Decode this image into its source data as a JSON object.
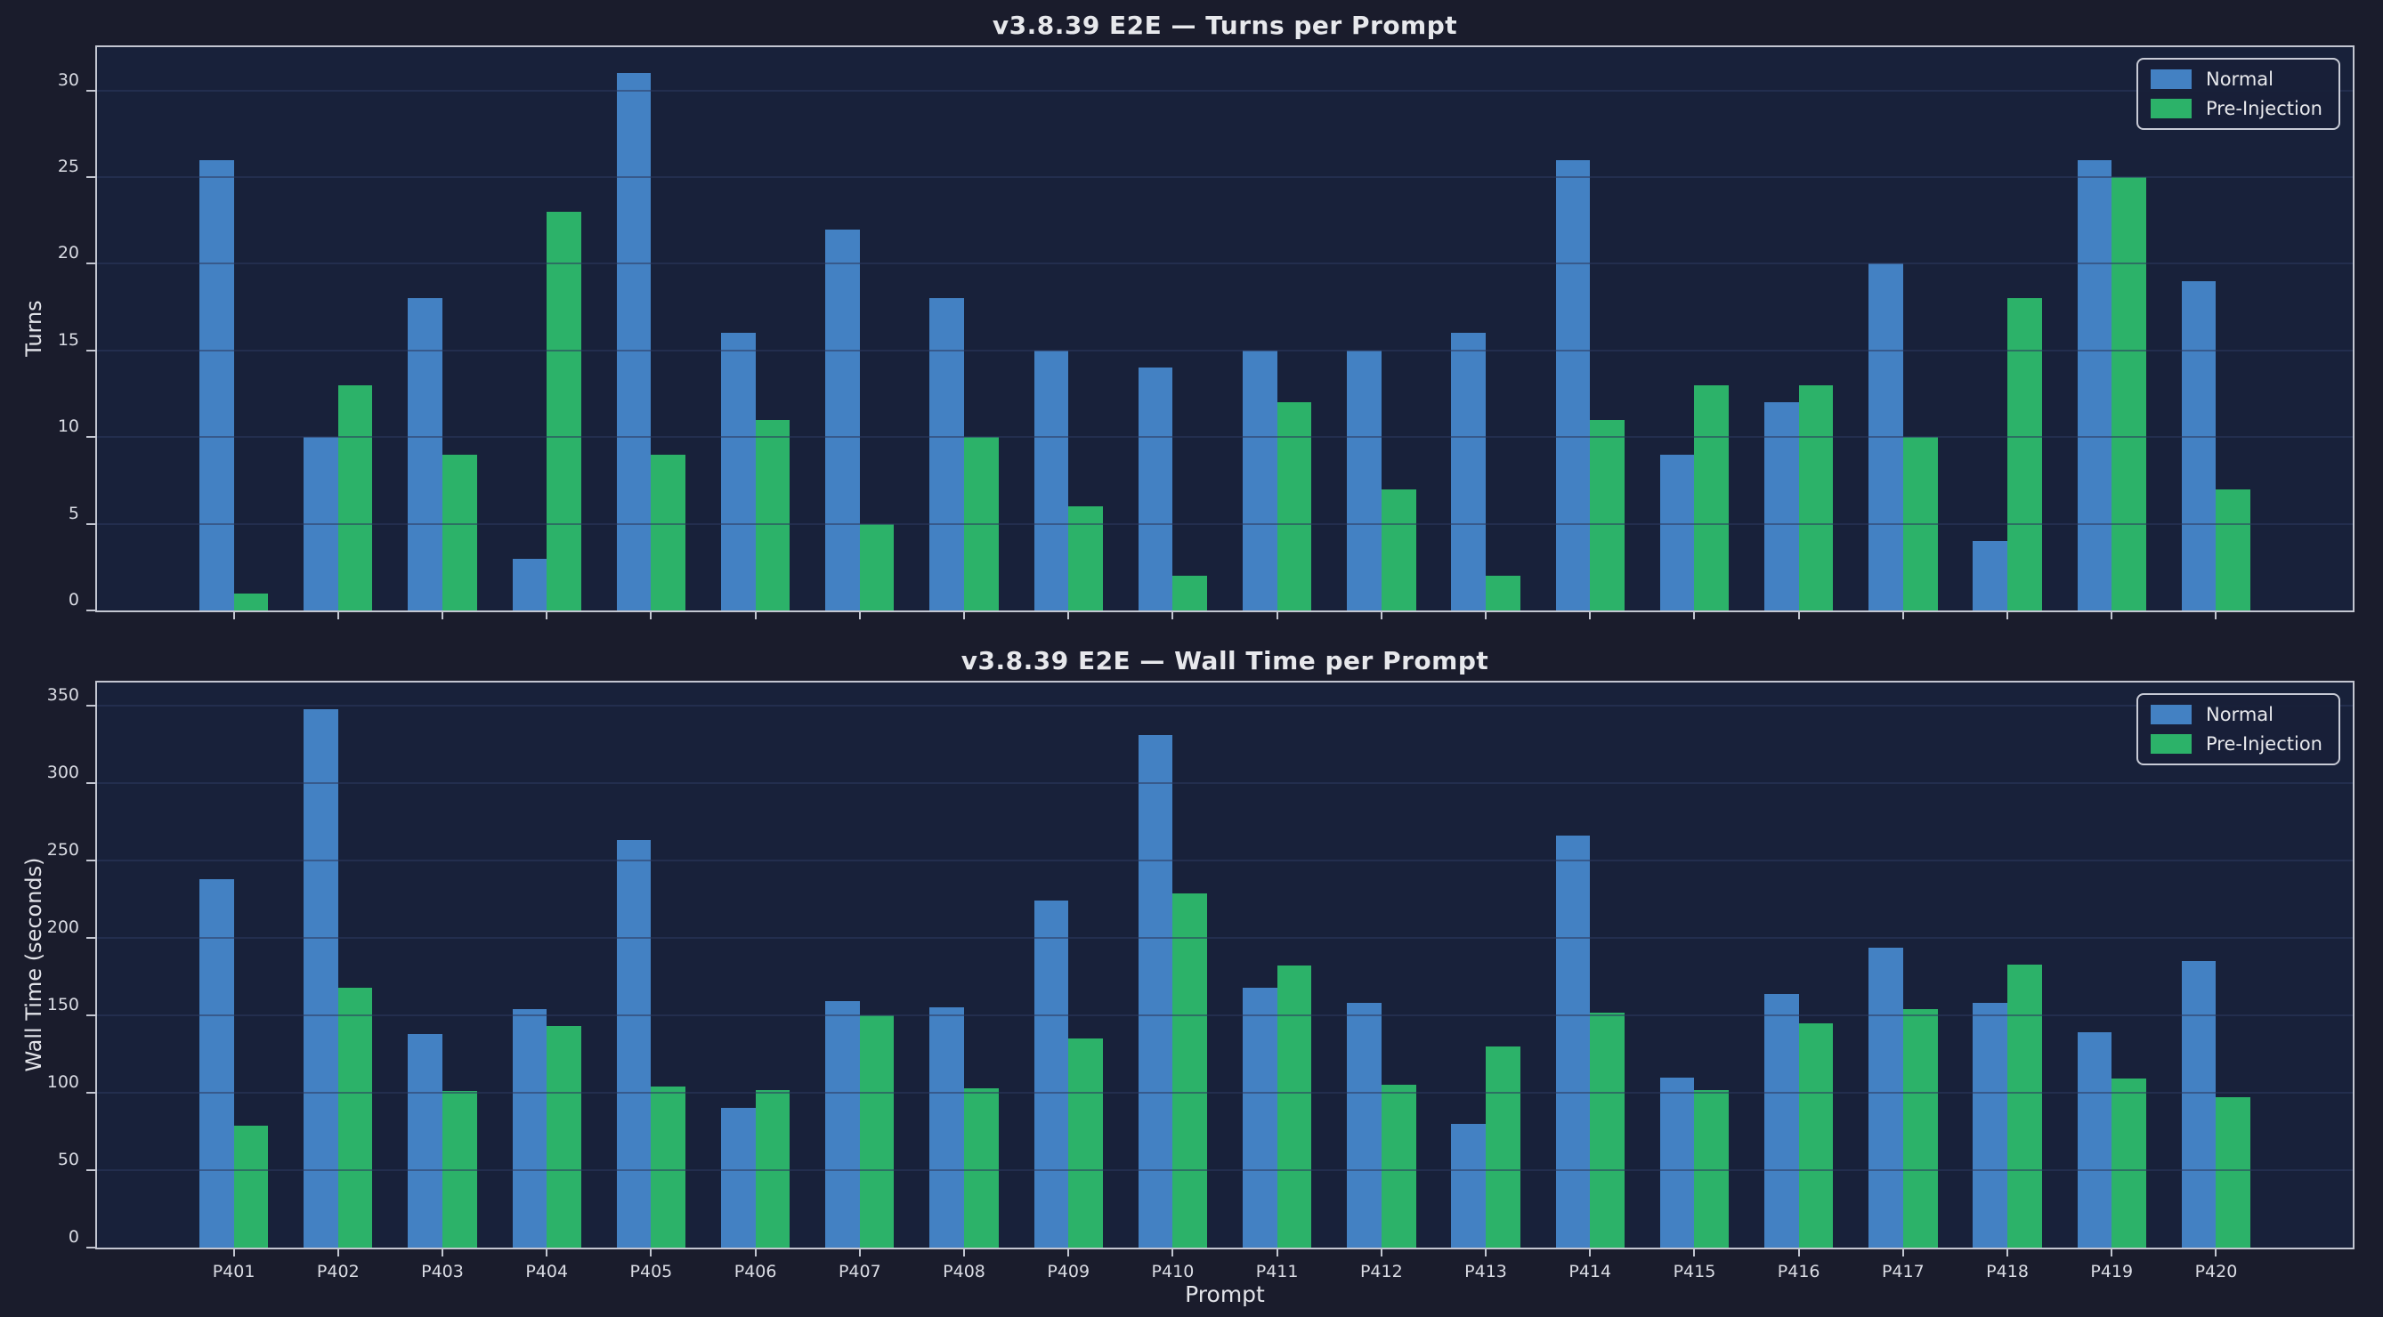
{
  "colors": {
    "figure_background": "#1a1c2c",
    "axes_background": "#18213a",
    "normal_blue": "#4381c3",
    "preinjection_green": "#2cb269",
    "title_text": "#e7e8ec",
    "tick_text": "#dadce4",
    "spine": "#c3c6d1",
    "grid": "rgba(46,58,94,0.55)"
  },
  "legend": {
    "items": [
      {
        "label": "Normal",
        "color": "#4381c3"
      },
      {
        "label": "Pre-Injection",
        "color": "#2cb269"
      }
    ],
    "position": "upper right"
  },
  "chart_data": [
    {
      "type": "bar",
      "title": "v3.8.39 E2E — Turns per Prompt",
      "ylabel": "Turns",
      "xlabel": "",
      "categories": [
        "P401",
        "P402",
        "P403",
        "P404",
        "P405",
        "P406",
        "P407",
        "P408",
        "P409",
        "P410",
        "P411",
        "P412",
        "P413",
        "P414",
        "P415",
        "P416",
        "P417",
        "P418",
        "P419",
        "P420"
      ],
      "series": [
        {
          "name": "Normal",
          "color": "#4381c3",
          "values": [
            26,
            10,
            18,
            3,
            31,
            16,
            22,
            18,
            15,
            14,
            15,
            15,
            16,
            26,
            9,
            12,
            20,
            4,
            26,
            19
          ]
        },
        {
          "name": "Pre-Injection",
          "color": "#2cb269",
          "values": [
            1,
            13,
            9,
            23,
            9,
            11,
            5,
            10,
            6,
            2,
            12,
            7,
            2,
            11,
            13,
            13,
            10,
            18,
            25,
            7
          ]
        }
      ],
      "ylim": [
        0,
        32.5
      ],
      "yticks": [
        0,
        5,
        10,
        15,
        20,
        25,
        30
      ],
      "grid": true,
      "legend_position": "upper right",
      "show_x_tick_labels": false
    },
    {
      "type": "bar",
      "title": "v3.8.39 E2E — Wall Time per Prompt",
      "ylabel": "Wall Time (seconds)",
      "xlabel": "Prompt",
      "categories": [
        "P401",
        "P402",
        "P403",
        "P404",
        "P405",
        "P406",
        "P407",
        "P408",
        "P409",
        "P410",
        "P411",
        "P412",
        "P413",
        "P414",
        "P415",
        "P416",
        "P417",
        "P418",
        "P419",
        "P420"
      ],
      "series": [
        {
          "name": "Normal",
          "color": "#4381c3",
          "values": [
            238,
            348,
            138,
            154,
            263,
            90,
            159,
            155,
            224,
            331,
            168,
            158,
            80,
            266,
            110,
            164,
            194,
            158,
            139,
            185
          ]
        },
        {
          "name": "Pre-Injection",
          "color": "#2cb269",
          "values": [
            79,
            168,
            101,
            143,
            104,
            102,
            150,
            103,
            135,
            229,
            182,
            105,
            130,
            152,
            102,
            145,
            154,
            183,
            109,
            97
          ]
        }
      ],
      "ylim": [
        0,
        365
      ],
      "yticks": [
        0,
        50,
        100,
        150,
        200,
        250,
        300,
        350
      ],
      "grid": true,
      "legend_position": "upper right",
      "show_x_tick_labels": true
    }
  ]
}
